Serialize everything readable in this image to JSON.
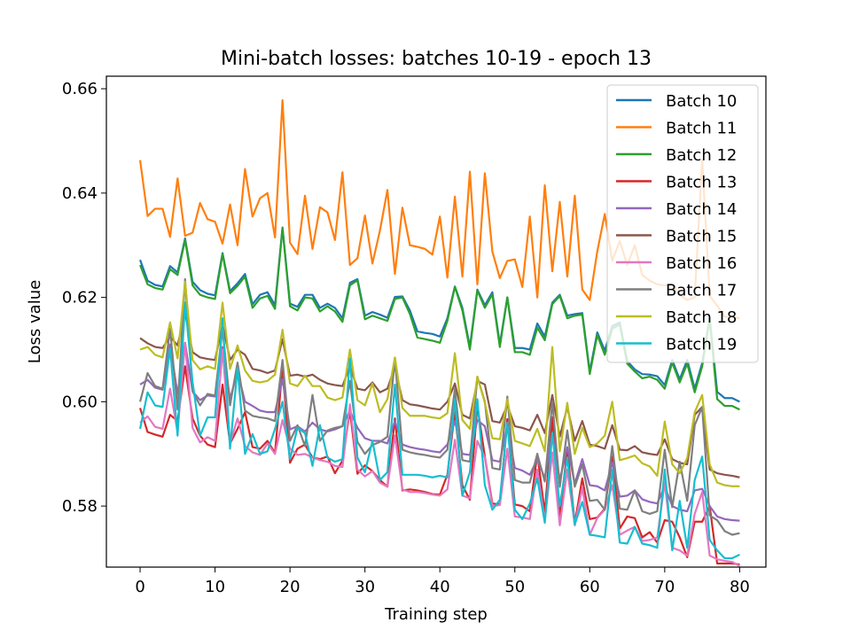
{
  "chart_data": {
    "type": "line",
    "title": "Mini-batch losses: batches 10-19 - epoch 13",
    "xlabel": "Training step",
    "ylabel": "Loss value",
    "xlim": [
      -4.5,
      83.5
    ],
    "ylim": [
      0.5683,
      0.6624
    ],
    "xticks": [
      0,
      10,
      20,
      30,
      40,
      50,
      60,
      70,
      80
    ],
    "yticks": [
      0.58,
      0.6,
      0.62,
      0.64,
      0.66
    ],
    "ytick_labels": [
      "0.58",
      "0.60",
      "0.62",
      "0.64",
      "0.66"
    ],
    "grid": false,
    "legend_position": "top-right",
    "series": [
      {
        "name": "Batch 10",
        "color": "#1f77b4",
        "values": [
          0.6272,
          0.6232,
          0.6224,
          0.6221,
          0.626,
          0.6248,
          0.6313,
          0.623,
          0.6214,
          0.6207,
          0.6204,
          0.6285,
          0.6212,
          0.6227,
          0.6245,
          0.6187,
          0.6205,
          0.621,
          0.6185,
          0.6334,
          0.6188,
          0.6182,
          0.6205,
          0.6205,
          0.618,
          0.6188,
          0.618,
          0.616,
          0.6228,
          0.6235,
          0.6165,
          0.6172,
          0.6167,
          0.6161,
          0.6201,
          0.6202,
          0.6175,
          0.6135,
          0.6132,
          0.613,
          0.6125,
          0.616,
          0.6221,
          0.618,
          0.6105,
          0.6215,
          0.6185,
          0.621,
          0.611,
          0.62,
          0.6103,
          0.6103,
          0.61,
          0.615,
          0.6125,
          0.619,
          0.6205,
          0.6165,
          0.6168,
          0.617,
          0.6058,
          0.6133,
          0.6098,
          0.6145,
          0.6152,
          0.6078,
          0.6062,
          0.6053,
          0.6052,
          0.6049,
          0.6032,
          0.608,
          0.6043,
          0.608,
          0.6025,
          0.6074,
          0.6161,
          0.6019,
          0.6007,
          0.6007,
          0.6
        ]
      },
      {
        "name": "Batch 11",
        "color": "#ff7f0e",
        "values": [
          0.6463,
          0.6356,
          0.637,
          0.637,
          0.6316,
          0.6428,
          0.6318,
          0.6324,
          0.6381,
          0.635,
          0.6345,
          0.6303,
          0.6378,
          0.63,
          0.6446,
          0.6355,
          0.639,
          0.64,
          0.6315,
          0.6578,
          0.6305,
          0.6283,
          0.6395,
          0.6293,
          0.6373,
          0.6363,
          0.631,
          0.644,
          0.6262,
          0.6275,
          0.6357,
          0.6265,
          0.6328,
          0.6406,
          0.6245,
          0.6372,
          0.63,
          0.6297,
          0.6293,
          0.6282,
          0.6355,
          0.6238,
          0.6393,
          0.624,
          0.6441,
          0.6225,
          0.6438,
          0.6288,
          0.6237,
          0.627,
          0.6273,
          0.622,
          0.6355,
          0.62,
          0.6415,
          0.625,
          0.6383,
          0.624,
          0.6395,
          0.6215,
          0.6195,
          0.6288,
          0.636,
          0.627,
          0.6308,
          0.6262,
          0.63,
          0.6243,
          0.6232,
          0.6225,
          0.6223,
          0.6225,
          0.6205,
          0.6195,
          0.62,
          0.6464,
          0.6203,
          0.6184,
          0.6163,
          0.6163,
          0.616
        ]
      },
      {
        "name": "Batch 12",
        "color": "#2ca02c",
        "values": [
          0.6262,
          0.6225,
          0.6218,
          0.6215,
          0.6254,
          0.6243,
          0.631,
          0.6223,
          0.6205,
          0.62,
          0.6197,
          0.6283,
          0.6208,
          0.6222,
          0.624,
          0.618,
          0.6198,
          0.6203,
          0.6178,
          0.6333,
          0.6183,
          0.6175,
          0.62,
          0.6198,
          0.6173,
          0.6183,
          0.6173,
          0.6153,
          0.6223,
          0.6233,
          0.6158,
          0.6165,
          0.616,
          0.6155,
          0.6197,
          0.62,
          0.6168,
          0.6123,
          0.612,
          0.6117,
          0.6113,
          0.6155,
          0.622,
          0.6175,
          0.61,
          0.6213,
          0.618,
          0.6206,
          0.6105,
          0.62,
          0.6095,
          0.6095,
          0.609,
          0.6142,
          0.6118,
          0.6187,
          0.6203,
          0.616,
          0.6165,
          0.6167,
          0.6053,
          0.6128,
          0.609,
          0.614,
          0.6148,
          0.6073,
          0.6058,
          0.6045,
          0.6048,
          0.6042,
          0.6025,
          0.6075,
          0.6037,
          0.6073,
          0.6018,
          0.6068,
          0.6158,
          0.6005,
          0.5992,
          0.5992,
          0.5985
        ]
      },
      {
        "name": "Batch 13",
        "color": "#d62728",
        "values": [
          0.5988,
          0.5942,
          0.5937,
          0.5933,
          0.5975,
          0.5963,
          0.6068,
          0.5968,
          0.5935,
          0.5918,
          0.5913,
          0.6033,
          0.592,
          0.5948,
          0.598,
          0.5913,
          0.591,
          0.5925,
          0.5902,
          0.6065,
          0.5883,
          0.591,
          0.5918,
          0.5893,
          0.589,
          0.5895,
          0.5863,
          0.5887,
          0.5983,
          0.5862,
          0.5878,
          0.5867,
          0.585,
          0.5837,
          0.5968,
          0.583,
          0.5832,
          0.583,
          0.5827,
          0.5823,
          0.5822,
          0.586,
          0.5982,
          0.584,
          0.5812,
          0.5993,
          0.5895,
          0.5805,
          0.5803,
          0.5967,
          0.5803,
          0.58,
          0.579,
          0.59,
          0.5787,
          0.597,
          0.578,
          0.591,
          0.5767,
          0.5853,
          0.5775,
          0.5778,
          0.5795,
          0.5895,
          0.5757,
          0.578,
          0.5777,
          0.574,
          0.575,
          0.573,
          0.5773,
          0.577,
          0.574,
          0.5702,
          0.577,
          0.577,
          0.58,
          0.569,
          0.569,
          0.569,
          0.5688
        ]
      },
      {
        "name": "Batch 14",
        "color": "#9467bd",
        "values": [
          0.6033,
          0.6042,
          0.6027,
          0.6023,
          0.611,
          0.6015,
          0.6113,
          0.602,
          0.6003,
          0.6012,
          0.601,
          0.6105,
          0.6005,
          0.6058,
          0.6,
          0.5992,
          0.5983,
          0.598,
          0.598,
          0.6043,
          0.5947,
          0.5953,
          0.5943,
          0.596,
          0.5947,
          0.5943,
          0.5947,
          0.5953,
          0.5983,
          0.595,
          0.593,
          0.5925,
          0.5925,
          0.592,
          0.5963,
          0.5918,
          0.5913,
          0.591,
          0.5908,
          0.5905,
          0.5903,
          0.5918,
          0.5963,
          0.59,
          0.5898,
          0.5965,
          0.5953,
          0.5888,
          0.5885,
          0.5955,
          0.5873,
          0.5868,
          0.586,
          0.589,
          0.5853,
          0.5938,
          0.585,
          0.5913,
          0.5843,
          0.589,
          0.584,
          0.5838,
          0.583,
          0.5883,
          0.5818,
          0.582,
          0.583,
          0.5813,
          0.5808,
          0.5805,
          0.5838,
          0.58,
          0.5793,
          0.579,
          0.583,
          0.5833,
          0.58,
          0.578,
          0.5775,
          0.5773,
          0.5772
        ]
      },
      {
        "name": "Batch 15",
        "color": "#8c564b",
        "values": [
          0.6122,
          0.6112,
          0.6105,
          0.6103,
          0.6125,
          0.6108,
          0.617,
          0.6095,
          0.6085,
          0.6082,
          0.608,
          0.6148,
          0.608,
          0.61,
          0.609,
          0.6063,
          0.606,
          0.6055,
          0.606,
          0.612,
          0.605,
          0.6052,
          0.6048,
          0.6052,
          0.6042,
          0.6035,
          0.6032,
          0.603,
          0.6068,
          0.6025,
          0.6022,
          0.6037,
          0.6018,
          0.6025,
          0.6067,
          0.6003,
          0.5995,
          0.5993,
          0.599,
          0.5987,
          0.5985,
          0.6,
          0.6035,
          0.5975,
          0.5968,
          0.604,
          0.6033,
          0.5963,
          0.596,
          0.5993,
          0.5953,
          0.595,
          0.5945,
          0.5975,
          0.594,
          0.6013,
          0.5933,
          0.599,
          0.5925,
          0.5963,
          0.5918,
          0.5915,
          0.591,
          0.5955,
          0.5908,
          0.5907,
          0.5915,
          0.5903,
          0.59,
          0.5898,
          0.5928,
          0.589,
          0.5883,
          0.588,
          0.5975,
          0.599,
          0.587,
          0.5863,
          0.586,
          0.5858,
          0.5855
        ]
      },
      {
        "name": "Batch 16",
        "color": "#e377c2",
        "values": [
          0.596,
          0.5972,
          0.5952,
          0.5948,
          0.6025,
          0.5942,
          0.6112,
          0.595,
          0.5922,
          0.5932,
          0.5925,
          0.61,
          0.592,
          0.5968,
          0.5915,
          0.5903,
          0.5898,
          0.592,
          0.59,
          0.5965,
          0.591,
          0.5898,
          0.59,
          0.5893,
          0.5888,
          0.5885,
          0.5877,
          0.5875,
          0.5995,
          0.587,
          0.5857,
          0.5867,
          0.5845,
          0.5837,
          0.5935,
          0.5832,
          0.5827,
          0.5827,
          0.5825,
          0.5822,
          0.582,
          0.5832,
          0.5927,
          0.582,
          0.5815,
          0.5925,
          0.5893,
          0.58,
          0.5802,
          0.591,
          0.578,
          0.5778,
          0.5775,
          0.587,
          0.5772,
          0.5903,
          0.5763,
          0.587,
          0.5763,
          0.5835,
          0.5745,
          0.5777,
          0.5793,
          0.584,
          0.5745,
          0.5753,
          0.576,
          0.5733,
          0.5735,
          0.574,
          0.5845,
          0.572,
          0.5715,
          0.5705,
          0.5785,
          0.5827,
          0.5705,
          0.5698,
          0.5695,
          0.5693,
          0.5685
        ]
      },
      {
        "name": "Batch 17",
        "color": "#7f7f7f",
        "values": [
          0.6,
          0.6055,
          0.603,
          0.6025,
          0.614,
          0.5985,
          0.6235,
          0.602,
          0.5993,
          0.6015,
          0.6012,
          0.614,
          0.5993,
          0.6075,
          0.5983,
          0.5973,
          0.597,
          0.5968,
          0.5963,
          0.608,
          0.5925,
          0.5955,
          0.5915,
          0.6013,
          0.5925,
          0.5945,
          0.595,
          0.5953,
          0.604,
          0.5923,
          0.59,
          0.5917,
          0.5923,
          0.5933,
          0.6083,
          0.5908,
          0.5903,
          0.59,
          0.5898,
          0.5895,
          0.5893,
          0.5908,
          0.6025,
          0.5888,
          0.5885,
          0.6048,
          0.6,
          0.5873,
          0.587,
          0.601,
          0.585,
          0.5845,
          0.5845,
          0.59,
          0.5847,
          0.6,
          0.5837,
          0.5945,
          0.5837,
          0.588,
          0.581,
          0.5812,
          0.5793,
          0.5915,
          0.5795,
          0.5793,
          0.583,
          0.579,
          0.5785,
          0.579,
          0.5908,
          0.5798,
          0.5885,
          0.581,
          0.5955,
          0.599,
          0.5782,
          0.5773,
          0.5752,
          0.5745,
          0.5748
        ]
      },
      {
        "name": "Batch 18",
        "color": "#bcbd22",
        "values": [
          0.61,
          0.6105,
          0.609,
          0.6085,
          0.6152,
          0.6083,
          0.623,
          0.608,
          0.6062,
          0.6068,
          0.6063,
          0.619,
          0.6063,
          0.6108,
          0.606,
          0.604,
          0.6037,
          0.604,
          0.6052,
          0.6138,
          0.6035,
          0.603,
          0.605,
          0.603,
          0.603,
          0.6008,
          0.6003,
          0.6008,
          0.61,
          0.6003,
          0.5993,
          0.6035,
          0.598,
          0.6005,
          0.6085,
          0.5988,
          0.5973,
          0.5973,
          0.5973,
          0.597,
          0.5968,
          0.5978,
          0.6093,
          0.5965,
          0.5948,
          0.6048,
          0.5998,
          0.593,
          0.5928,
          0.6005,
          0.5925,
          0.592,
          0.5915,
          0.5948,
          0.5905,
          0.6105,
          0.5905,
          0.5998,
          0.59,
          0.595,
          0.5913,
          0.592,
          0.5935,
          0.6,
          0.5888,
          0.5892,
          0.5897,
          0.5882,
          0.5876,
          0.5858,
          0.5962,
          0.588,
          0.5863,
          0.5892,
          0.598,
          0.6013,
          0.588,
          0.5845,
          0.584,
          0.5838,
          0.5838
        ]
      },
      {
        "name": "Batch 19",
        "color": "#17becf",
        "values": [
          0.5948,
          0.6018,
          0.5993,
          0.599,
          0.6102,
          0.5935,
          0.619,
          0.6038,
          0.5935,
          0.597,
          0.597,
          0.616,
          0.591,
          0.6065,
          0.59,
          0.5938,
          0.59,
          0.5905,
          0.5948,
          0.6,
          0.589,
          0.595,
          0.594,
          0.5877,
          0.5955,
          0.5893,
          0.5885,
          0.589,
          0.6083,
          0.5893,
          0.5865,
          0.5925,
          0.585,
          0.5865,
          0.6033,
          0.586,
          0.586,
          0.586,
          0.5858,
          0.5855,
          0.5858,
          0.5855,
          0.6005,
          0.582,
          0.5865,
          0.6005,
          0.584,
          0.5793,
          0.5812,
          0.596,
          0.5793,
          0.5775,
          0.5805,
          0.5853,
          0.5768,
          0.594,
          0.58,
          0.5893,
          0.5765,
          0.5808,
          0.5745,
          0.5743,
          0.574,
          0.587,
          0.573,
          0.5728,
          0.576,
          0.5728,
          0.5725,
          0.572,
          0.587,
          0.5715,
          0.581,
          0.572,
          0.585,
          0.5895,
          0.5735,
          0.5715,
          0.57,
          0.57,
          0.5707
        ]
      }
    ]
  }
}
